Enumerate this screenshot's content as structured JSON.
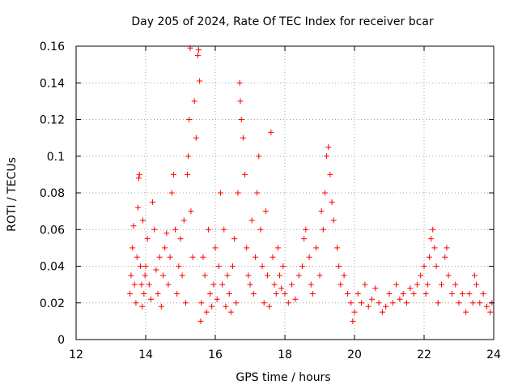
{
  "chart_data": {
    "type": "scatter",
    "title": "Day 205 of 2024, Rate Of TEC Index for receiver bcar",
    "xlabel": "GPS time / hours",
    "ylabel": "ROTI / TECUs",
    "xlim": [
      12,
      24
    ],
    "ylim": [
      0,
      0.16
    ],
    "xticks": [
      12,
      14,
      16,
      18,
      20,
      22,
      24
    ],
    "yticks": [
      0,
      0.02,
      0.04,
      0.06,
      0.08,
      0.1,
      0.12,
      0.14,
      0.16
    ],
    "grid": true,
    "marker": "plus",
    "color": "#ff0000",
    "series": [
      {
        "points": [
          [
            13.55,
            0.025
          ],
          [
            13.58,
            0.035
          ],
          [
            13.62,
            0.05
          ],
          [
            13.65,
            0.062
          ],
          [
            13.68,
            0.03
          ],
          [
            13.72,
            0.02
          ],
          [
            13.75,
            0.045
          ],
          [
            13.78,
            0.072
          ],
          [
            13.8,
            0.088
          ],
          [
            13.82,
            0.09
          ],
          [
            13.85,
            0.04
          ],
          [
            13.88,
            0.03
          ],
          [
            13.9,
            0.018
          ],
          [
            13.92,
            0.065
          ],
          [
            13.95,
            0.025
          ],
          [
            13.98,
            0.035
          ],
          [
            14.0,
            0.04
          ],
          [
            14.05,
            0.055
          ],
          [
            14.1,
            0.03
          ],
          [
            14.15,
            0.022
          ],
          [
            14.2,
            0.075
          ],
          [
            14.25,
            0.06
          ],
          [
            14.3,
            0.038
          ],
          [
            14.35,
            0.025
          ],
          [
            14.4,
            0.045
          ],
          [
            14.45,
            0.018
          ],
          [
            14.5,
            0.035
          ],
          [
            14.55,
            0.05
          ],
          [
            14.6,
            0.058
          ],
          [
            14.65,
            0.03
          ],
          [
            14.7,
            0.045
          ],
          [
            14.75,
            0.08
          ],
          [
            14.8,
            0.09
          ],
          [
            14.85,
            0.06
          ],
          [
            14.9,
            0.025
          ],
          [
            14.95,
            0.04
          ],
          [
            15.0,
            0.055
          ],
          [
            15.05,
            0.035
          ],
          [
            15.1,
            0.065
          ],
          [
            15.15,
            0.02
          ],
          [
            15.2,
            0.09
          ],
          [
            15.22,
            0.1
          ],
          [
            15.25,
            0.12
          ],
          [
            15.28,
            0.159
          ],
          [
            15.3,
            0.07
          ],
          [
            15.35,
            0.045
          ],
          [
            15.4,
            0.13
          ],
          [
            15.45,
            0.11
          ],
          [
            15.5,
            0.155
          ],
          [
            15.52,
            0.158
          ],
          [
            15.55,
            0.141
          ],
          [
            15.58,
            0.01
          ],
          [
            15.6,
            0.02
          ],
          [
            15.65,
            0.045
          ],
          [
            15.7,
            0.035
          ],
          [
            15.75,
            0.015
          ],
          [
            15.8,
            0.06
          ],
          [
            15.85,
            0.025
          ],
          [
            15.9,
            0.018
          ],
          [
            15.95,
            0.03
          ],
          [
            16.0,
            0.05
          ],
          [
            16.05,
            0.022
          ],
          [
            16.1,
            0.04
          ],
          [
            16.15,
            0.08
          ],
          [
            16.2,
            0.03
          ],
          [
            16.25,
            0.06
          ],
          [
            16.3,
            0.018
          ],
          [
            16.35,
            0.035
          ],
          [
            16.4,
            0.025
          ],
          [
            16.45,
            0.015
          ],
          [
            16.5,
            0.04
          ],
          [
            16.55,
            0.055
          ],
          [
            16.6,
            0.02
          ],
          [
            16.65,
            0.08
          ],
          [
            16.7,
            0.14
          ],
          [
            16.72,
            0.13
          ],
          [
            16.75,
            0.12
          ],
          [
            16.8,
            0.11
          ],
          [
            16.85,
            0.09
          ],
          [
            16.9,
            0.05
          ],
          [
            16.95,
            0.035
          ],
          [
            17.0,
            0.03
          ],
          [
            17.05,
            0.065
          ],
          [
            17.1,
            0.025
          ],
          [
            17.15,
            0.045
          ],
          [
            17.2,
            0.08
          ],
          [
            17.25,
            0.1
          ],
          [
            17.3,
            0.06
          ],
          [
            17.35,
            0.04
          ],
          [
            17.4,
            0.02
          ],
          [
            17.45,
            0.07
          ],
          [
            17.5,
            0.035
          ],
          [
            17.55,
            0.018
          ],
          [
            17.6,
            0.113
          ],
          [
            17.65,
            0.045
          ],
          [
            17.7,
            0.03
          ],
          [
            17.75,
            0.025
          ],
          [
            17.8,
            0.05
          ],
          [
            17.85,
            0.035
          ],
          [
            17.9,
            0.028
          ],
          [
            17.95,
            0.04
          ],
          [
            18.0,
            0.025
          ],
          [
            18.1,
            0.02
          ],
          [
            18.2,
            0.03
          ],
          [
            18.3,
            0.022
          ],
          [
            18.4,
            0.035
          ],
          [
            18.5,
            0.04
          ],
          [
            18.55,
            0.055
          ],
          [
            18.6,
            0.06
          ],
          [
            18.7,
            0.045
          ],
          [
            18.75,
            0.03
          ],
          [
            18.8,
            0.025
          ],
          [
            18.9,
            0.05
          ],
          [
            19.0,
            0.035
          ],
          [
            19.05,
            0.07
          ],
          [
            19.1,
            0.06
          ],
          [
            19.15,
            0.08
          ],
          [
            19.2,
            0.1
          ],
          [
            19.25,
            0.105
          ],
          [
            19.3,
            0.09
          ],
          [
            19.35,
            0.075
          ],
          [
            19.4,
            0.065
          ],
          [
            19.5,
            0.05
          ],
          [
            19.55,
            0.04
          ],
          [
            19.6,
            0.03
          ],
          [
            19.7,
            0.035
          ],
          [
            19.8,
            0.025
          ],
          [
            19.9,
            0.02
          ],
          [
            19.95,
            0.01
          ],
          [
            20.0,
            0.015
          ],
          [
            20.1,
            0.025
          ],
          [
            20.2,
            0.02
          ],
          [
            20.3,
            0.03
          ],
          [
            20.4,
            0.018
          ],
          [
            20.5,
            0.022
          ],
          [
            20.6,
            0.028
          ],
          [
            20.7,
            0.02
          ],
          [
            20.8,
            0.015
          ],
          [
            20.9,
            0.018
          ],
          [
            21.0,
            0.025
          ],
          [
            21.1,
            0.02
          ],
          [
            21.2,
            0.03
          ],
          [
            21.3,
            0.022
          ],
          [
            21.4,
            0.025
          ],
          [
            21.5,
            0.02
          ],
          [
            21.6,
            0.028
          ],
          [
            21.7,
            0.025
          ],
          [
            21.8,
            0.03
          ],
          [
            21.9,
            0.035
          ],
          [
            22.0,
            0.04
          ],
          [
            22.05,
            0.025
          ],
          [
            22.1,
            0.03
          ],
          [
            22.15,
            0.045
          ],
          [
            22.2,
            0.055
          ],
          [
            22.25,
            0.06
          ],
          [
            22.3,
            0.05
          ],
          [
            22.35,
            0.04
          ],
          [
            22.4,
            0.02
          ],
          [
            22.5,
            0.03
          ],
          [
            22.6,
            0.045
          ],
          [
            22.65,
            0.05
          ],
          [
            22.7,
            0.035
          ],
          [
            22.8,
            0.025
          ],
          [
            22.9,
            0.03
          ],
          [
            23.0,
            0.02
          ],
          [
            23.1,
            0.025
          ],
          [
            23.2,
            0.015
          ],
          [
            23.3,
            0.025
          ],
          [
            23.4,
            0.02
          ],
          [
            23.45,
            0.035
          ],
          [
            23.5,
            0.03
          ],
          [
            23.6,
            0.02
          ],
          [
            23.7,
            0.025
          ],
          [
            23.8,
            0.018
          ],
          [
            23.9,
            0.015
          ],
          [
            23.95,
            0.02
          ]
        ]
      }
    ]
  }
}
